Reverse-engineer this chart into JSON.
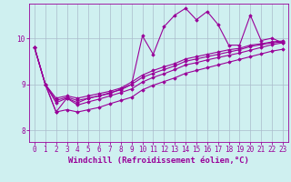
{
  "xlabel": "Windchill (Refroidissement éolien,°C)",
  "background_color": "#cff0f0",
  "line_color": "#990099",
  "grid_color": "#aabbcc",
  "xlim": [
    -0.5,
    23.5
  ],
  "ylim": [
    7.75,
    10.75
  ],
  "yticks": [
    8,
    9,
    10
  ],
  "xticks": [
    0,
    1,
    2,
    3,
    4,
    5,
    6,
    7,
    8,
    9,
    10,
    11,
    12,
    13,
    14,
    15,
    16,
    17,
    18,
    19,
    20,
    21,
    22,
    23
  ],
  "series": [
    [
      9.8,
      9.0,
      8.6,
      8.7,
      8.6,
      8.7,
      8.75,
      8.8,
      8.9,
      9.0,
      10.05,
      9.65,
      10.25,
      10.5,
      10.65,
      10.4,
      10.58,
      10.3,
      9.85,
      9.85,
      10.5,
      9.95,
      10.0,
      9.9
    ],
    [
      9.8,
      9.0,
      8.7,
      8.75,
      8.7,
      8.75,
      8.8,
      8.85,
      8.92,
      9.05,
      9.2,
      9.3,
      9.38,
      9.45,
      9.55,
      9.6,
      9.65,
      9.7,
      9.75,
      9.78,
      9.85,
      9.88,
      9.92,
      9.94
    ],
    [
      9.8,
      9.0,
      8.65,
      8.72,
      8.65,
      8.7,
      8.75,
      8.82,
      8.88,
      9.0,
      9.15,
      9.24,
      9.32,
      9.4,
      9.5,
      9.55,
      9.6,
      9.65,
      9.7,
      9.75,
      9.82,
      9.86,
      9.9,
      9.92
    ],
    [
      9.8,
      9.0,
      8.4,
      8.7,
      8.55,
      8.62,
      8.68,
      8.75,
      8.82,
      8.9,
      9.05,
      9.15,
      9.23,
      9.32,
      9.42,
      9.47,
      9.53,
      9.58,
      9.63,
      9.68,
      9.74,
      9.8,
      9.86,
      9.9
    ],
    [
      9.8,
      9.0,
      8.4,
      8.45,
      8.4,
      8.45,
      8.5,
      8.58,
      8.65,
      8.72,
      8.88,
      8.98,
      9.06,
      9.14,
      9.24,
      9.3,
      9.36,
      9.42,
      9.48,
      9.54,
      9.6,
      9.66,
      9.72,
      9.76
    ]
  ],
  "tick_fontsize": 5.5,
  "label_fontsize": 6.5,
  "marker": "D",
  "markersize": 1.8,
  "linewidth": 0.8
}
